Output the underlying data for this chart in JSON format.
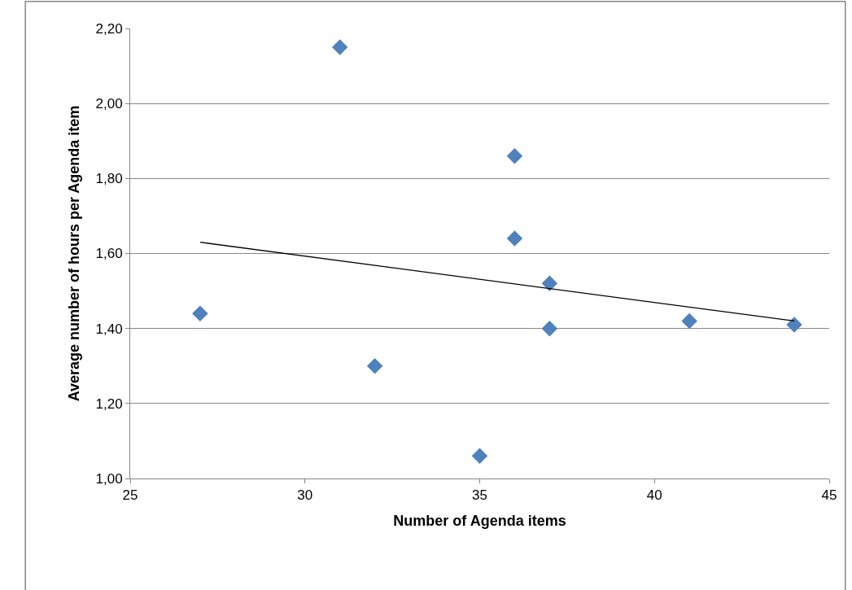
{
  "chart_data": {
    "type": "scatter",
    "xlabel": "Number of Agenda items",
    "ylabel": "Average number of hours per Agenda item",
    "xlim": [
      25,
      45
    ],
    "xticks": [
      25,
      30,
      35,
      40,
      45
    ],
    "ylim": [
      1.0,
      2.2
    ],
    "yticks": [
      {
        "value": 1.0,
        "label": "1,00"
      },
      {
        "value": 1.2,
        "label": "1,20"
      },
      {
        "value": 1.4,
        "label": "1,40"
      },
      {
        "value": 1.6,
        "label": "1,60"
      },
      {
        "value": 1.8,
        "label": "1,80"
      },
      {
        "value": 2.0,
        "label": "2,00"
      },
      {
        "value": 2.2,
        "label": "2,20"
      }
    ],
    "grid": "y",
    "series": [
      {
        "marker": "diamond",
        "color": "#4f81bd",
        "x": [
          27,
          31,
          32,
          35,
          36,
          36,
          37,
          37,
          41,
          44
        ],
        "values": [
          1.44,
          2.15,
          1.3,
          1.06,
          1.86,
          1.64,
          1.52,
          1.4,
          1.42,
          1.41
        ]
      },
      {
        "type": "line",
        "color": "#000000",
        "x": [
          27,
          44
        ],
        "values": [
          1.63,
          1.42
        ]
      }
    ]
  }
}
